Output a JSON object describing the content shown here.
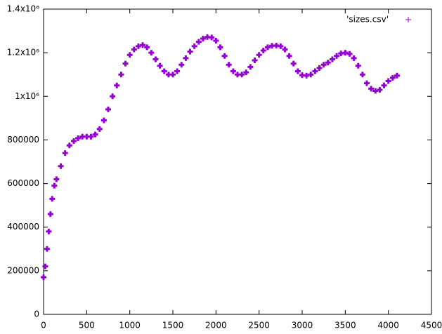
{
  "chart_data": {
    "type": "scatter",
    "series": [
      {
        "name": "'sizes.csv'",
        "color": "#9400d3",
        "x": [
          0,
          20,
          40,
          60,
          80,
          100,
          125,
          150,
          200,
          250,
          300,
          350,
          400,
          450,
          500,
          550,
          600,
          650,
          700,
          750,
          800,
          850,
          900,
          950,
          1000,
          1050,
          1100,
          1150,
          1200,
          1250,
          1300,
          1350,
          1400,
          1450,
          1500,
          1550,
          1600,
          1650,
          1700,
          1750,
          1800,
          1850,
          1900,
          1950,
          2000,
          2050,
          2100,
          2150,
          2200,
          2250,
          2300,
          2350,
          2400,
          2450,
          2500,
          2550,
          2600,
          2650,
          2700,
          2750,
          2800,
          2850,
          2900,
          2950,
          3000,
          3050,
          3100,
          3150,
          3200,
          3250,
          3300,
          3350,
          3400,
          3450,
          3500,
          3550,
          3600,
          3650,
          3700,
          3750,
          3800,
          3850,
          3900,
          3950,
          4000,
          4050,
          4100
        ],
        "values": [
          170000,
          220000,
          300000,
          380000,
          460000,
          530000,
          590000,
          620000,
          680000,
          740000,
          775000,
          795000,
          808000,
          815000,
          815000,
          815000,
          825000,
          850000,
          890000,
          940000,
          1000000,
          1050000,
          1100000,
          1150000,
          1190000,
          1215000,
          1230000,
          1235000,
          1225000,
          1200000,
          1170000,
          1140000,
          1115000,
          1100000,
          1100000,
          1115000,
          1145000,
          1175000,
          1205000,
          1230000,
          1250000,
          1265000,
          1272000,
          1270000,
          1255000,
          1225000,
          1185000,
          1145000,
          1115000,
          1100000,
          1100000,
          1110000,
          1135000,
          1165000,
          1190000,
          1210000,
          1225000,
          1232000,
          1233000,
          1230000,
          1215000,
          1185000,
          1150000,
          1115000,
          1097000,
          1095000,
          1100000,
          1115000,
          1130000,
          1145000,
          1155000,
          1170000,
          1185000,
          1197000,
          1200000,
          1195000,
          1175000,
          1140000,
          1100000,
          1060000,
          1035000,
          1025000,
          1030000,
          1050000,
          1070000,
          1085000,
          1095000
        ]
      }
    ],
    "xlim": [
      0,
      4500
    ],
    "xticks": [
      0,
      500,
      1000,
      1500,
      2000,
      2500,
      3000,
      3500,
      4000,
      4500
    ],
    "ylim": [
      0,
      1400000
    ],
    "yticks": [
      0,
      200000,
      400000,
      600000,
      800000,
      {
        "value": 1000000,
        "label": "1x10⁶"
      },
      {
        "value": 1200000,
        "label": "1.2x10⁶"
      },
      {
        "value": 1400000,
        "label": "1.4x10⁶"
      }
    ],
    "legend": "top-right"
  }
}
